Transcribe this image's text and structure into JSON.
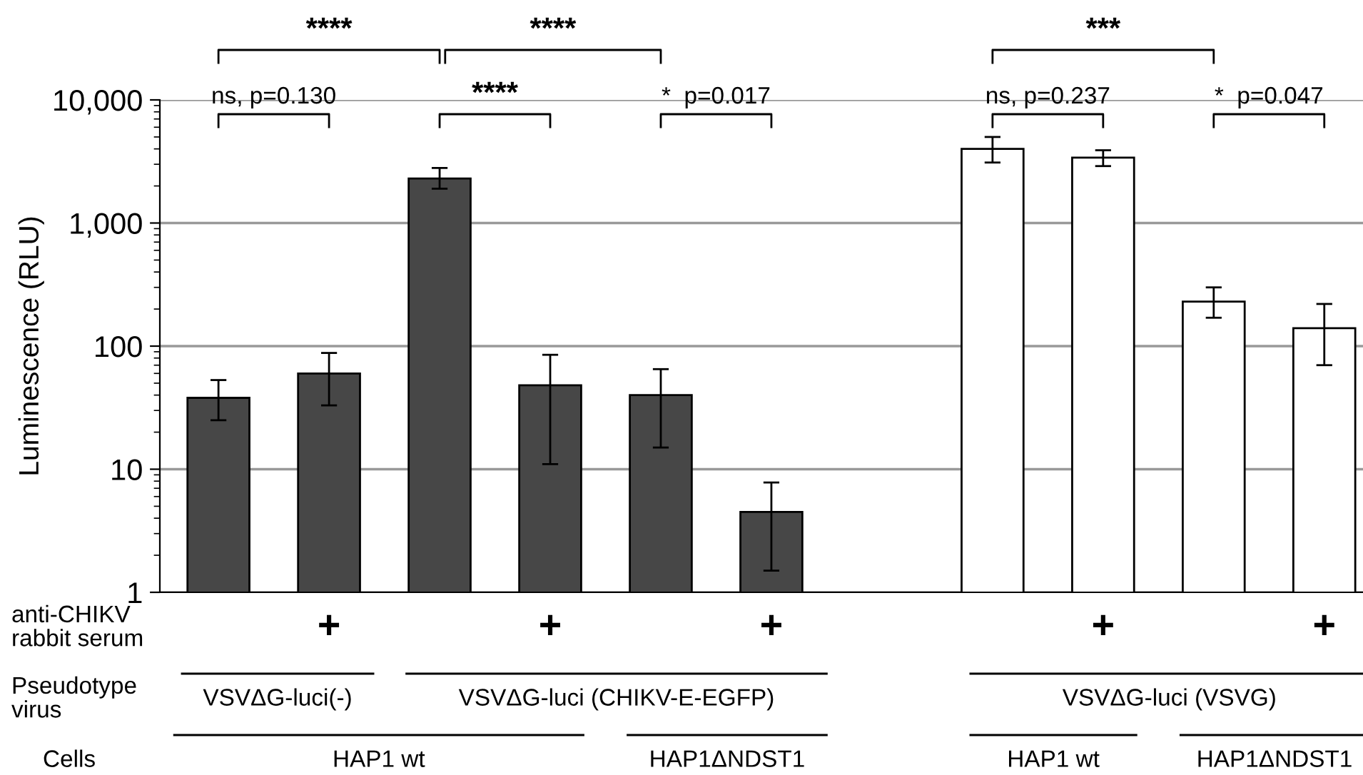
{
  "chart_data": {
    "type": "bar",
    "ylabel": "Luminescence (RLU)",
    "categories": [
      null,
      null,
      null,
      null,
      null,
      null,
      null,
      null,
      null,
      null,
      null
    ],
    "values": [
      38,
      60,
      2300,
      48,
      40,
      4.5,
      null,
      4000,
      3400,
      230,
      140
    ],
    "errors": [
      [
        25,
        53
      ],
      [
        33,
        88
      ],
      [
        1900,
        2800
      ],
      [
        11,
        85
      ],
      [
        15,
        65
      ],
      [
        1.5,
        7.8
      ],
      null,
      [
        3100,
        5000
      ],
      [
        2900,
        3900
      ],
      [
        170,
        300
      ],
      [
        70,
        220
      ]
    ],
    "colors": [
      "#474747",
      "#474747",
      "#474747",
      "#474747",
      "#474747",
      "#474747",
      "#ffffff",
      "#ffffff",
      "#ffffff",
      "#ffffff",
      "#ffffff"
    ],
    "log": true,
    "ylim": [
      1,
      10000
    ],
    "yticks": [
      1,
      10,
      100,
      {
        "value": 1000,
        "label": "1,000"
      },
      {
        "value": 10000,
        "label": "10,000"
      }
    ],
    "grid": "y",
    "annotations": [
      "****",
      "****",
      "ns, p=0.130",
      "****",
      "*  p=0.017",
      "***",
      "ns, p=0.237",
      "*  p=0.047",
      "anti-CHIKV\nrabbit serum",
      "+",
      "+",
      "+",
      "+",
      "+",
      "Pseudotype\nvirus",
      "VSVΔG-luci(-)",
      "VSVΔG-luci (CHIKV-E-EGFP)",
      "VSVΔG-luci (VSVG)",
      "Cells",
      "HAP1 wt",
      "HAP1ΔNDST1",
      "HAP1 wt",
      "HAP1ΔNDST1"
    ]
  }
}
